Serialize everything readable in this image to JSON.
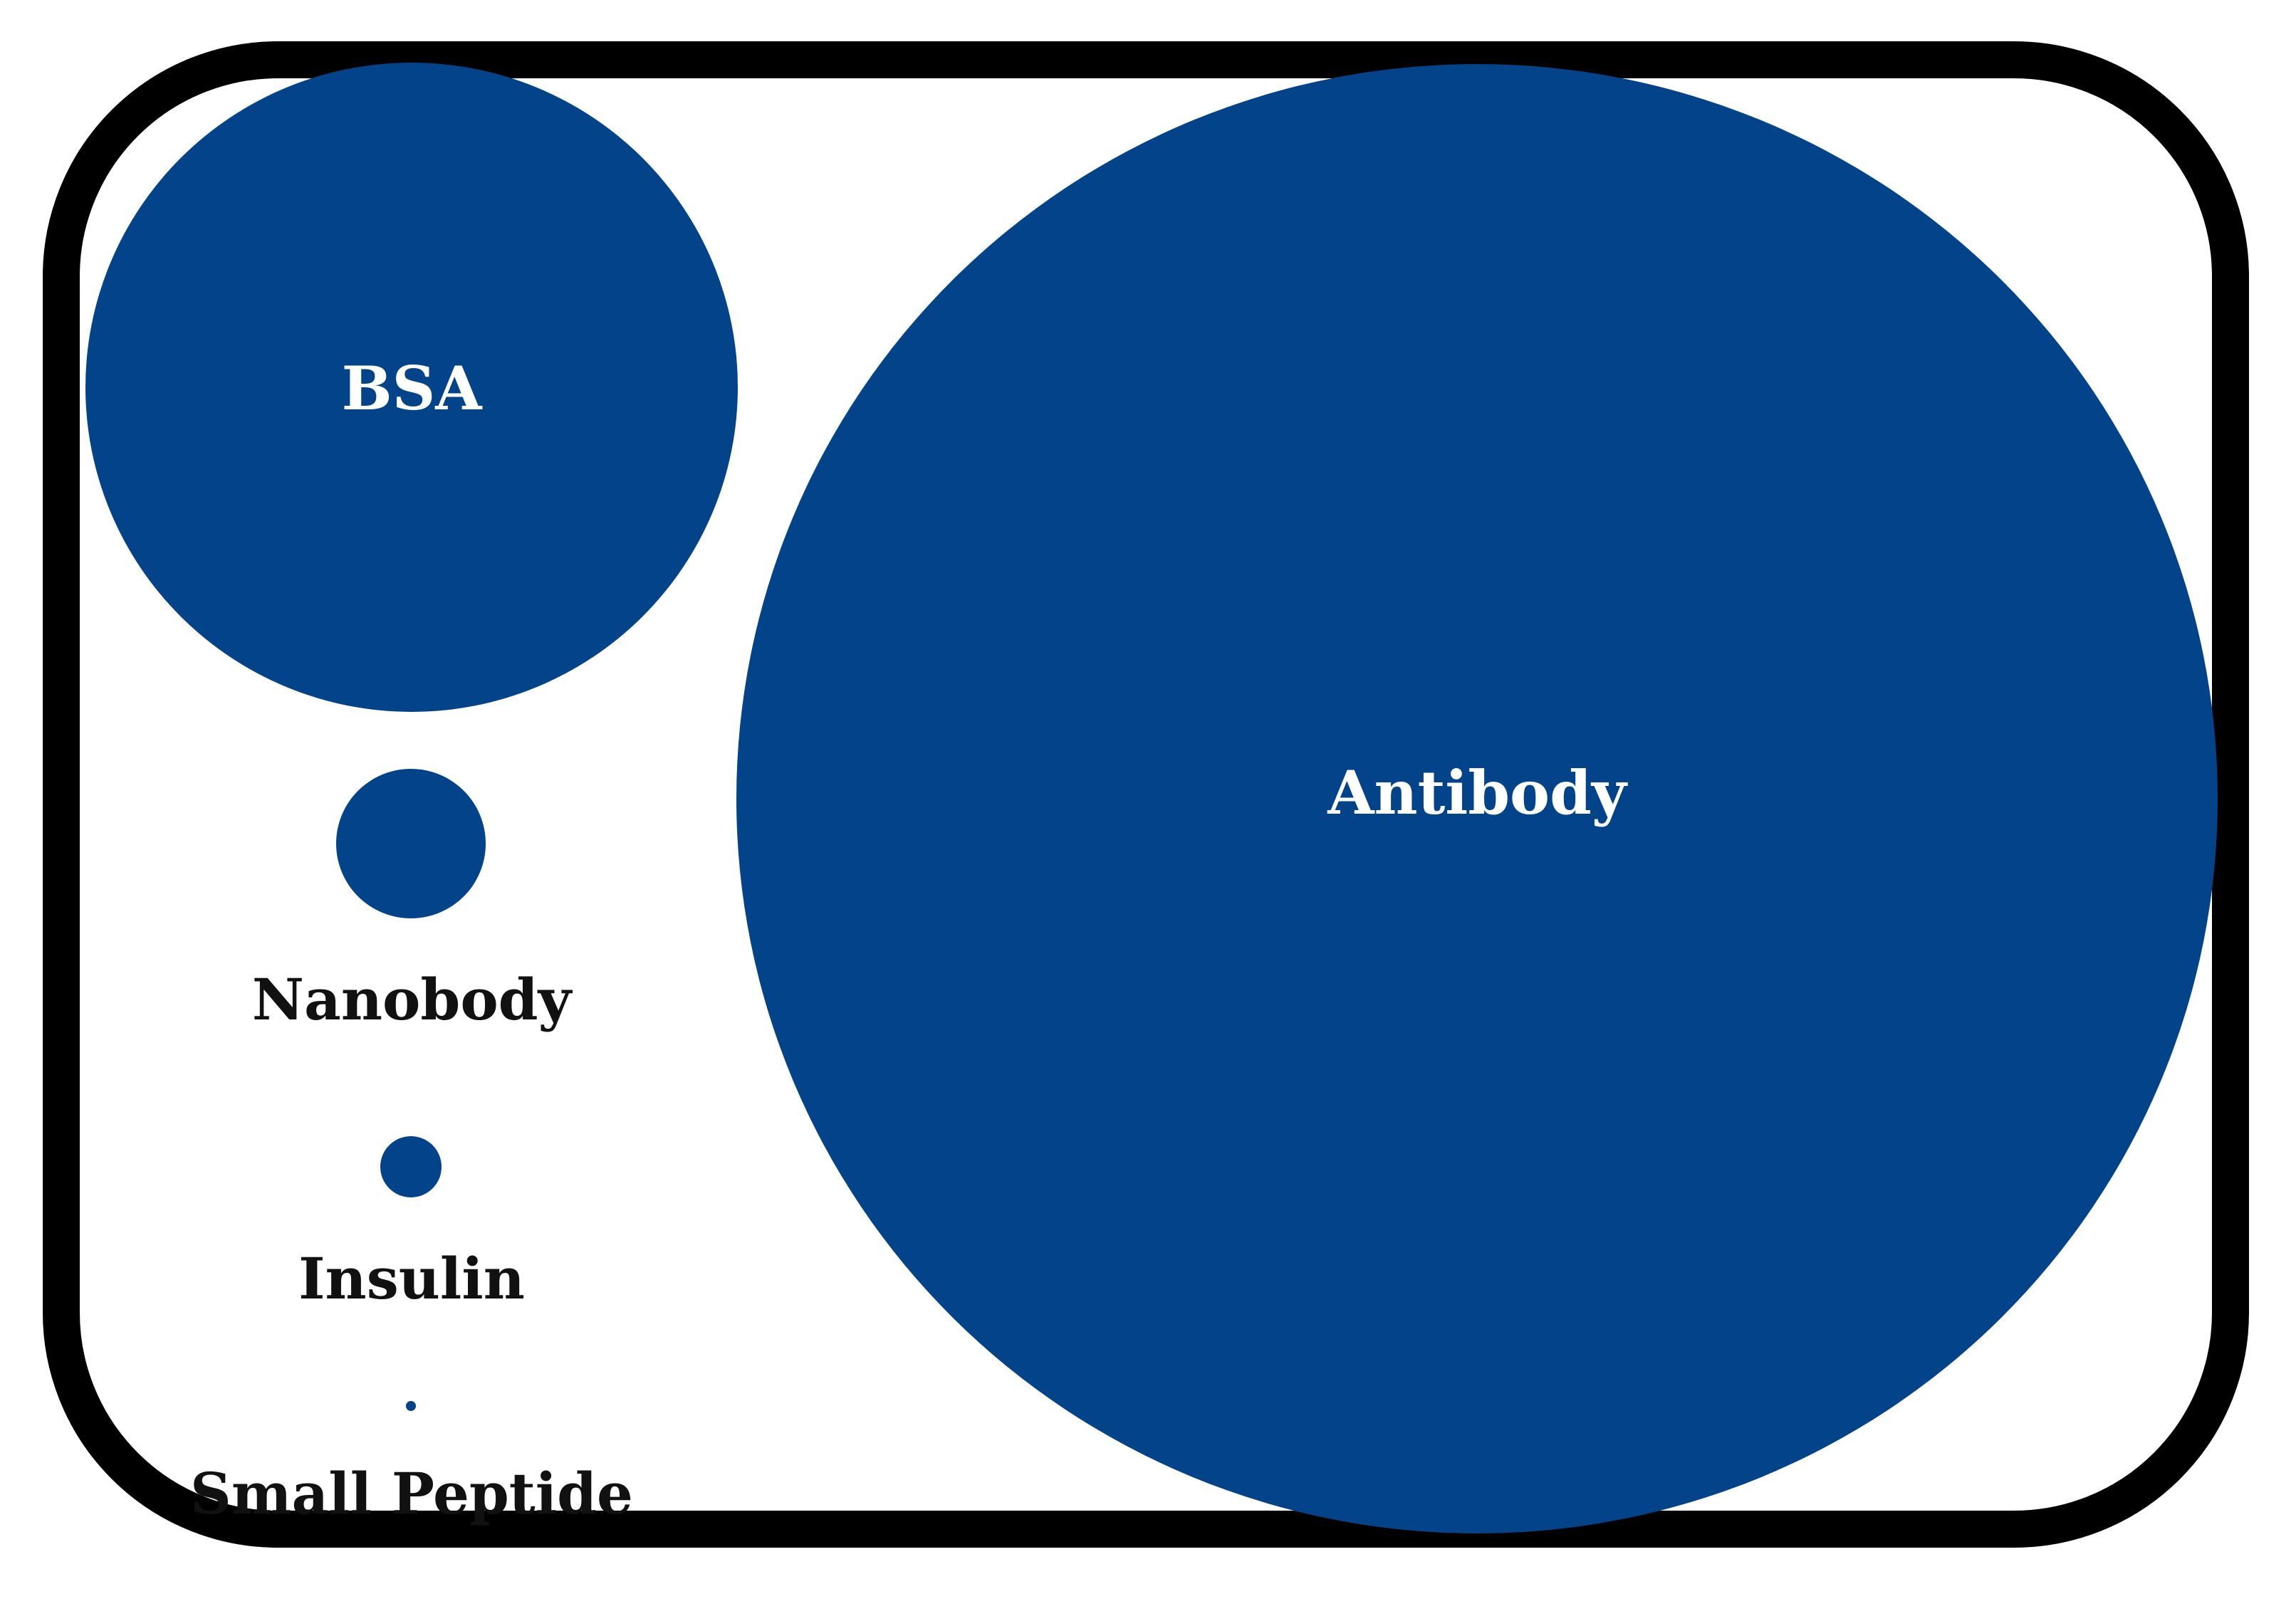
{
  "colors": {
    "circle_fill": "#02438A",
    "frame_border": "#000000",
    "label_on_circle": "#ffffff",
    "label_below": "#111111"
  },
  "molecules": [
    {
      "id": "bsa",
      "label": "BSA",
      "label_position": "inside"
    },
    {
      "id": "antibody",
      "label": "Antibody",
      "label_position": "inside"
    },
    {
      "id": "nanobody",
      "label": "Nanobody",
      "label_position": "below"
    },
    {
      "id": "insulin",
      "label": "Insulin",
      "label_position": "below"
    },
    {
      "id": "small-peptide",
      "label": "Small Peptide",
      "label_position": "below"
    }
  ]
}
